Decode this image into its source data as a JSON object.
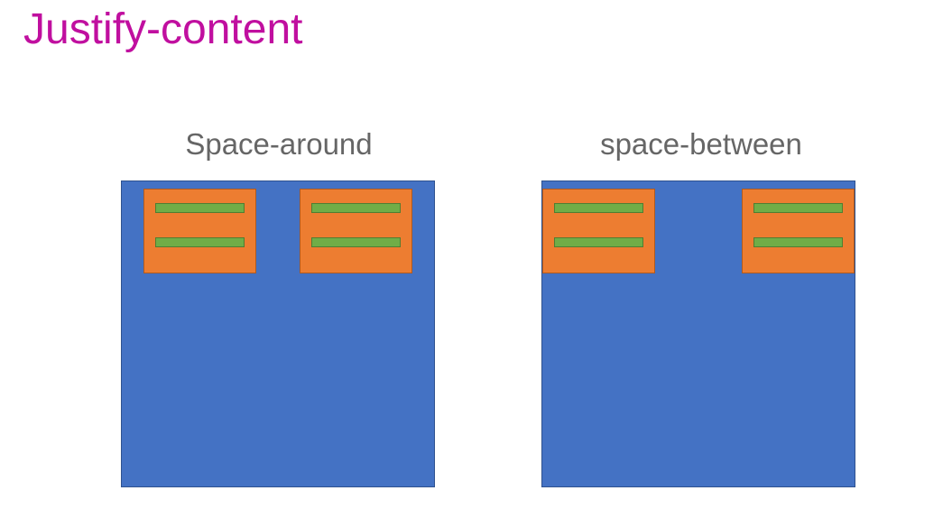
{
  "title": "Justify-content",
  "colors": {
    "title": "#c00f9f",
    "caption": "#666666",
    "container": "#4472c4",
    "item": "#ed7d31",
    "bar": "#70ad47"
  },
  "panels": [
    {
      "label": "Space-around",
      "justify": "space-around",
      "items": 2
    },
    {
      "label": "space-between",
      "justify": "space-between",
      "items": 2
    }
  ]
}
